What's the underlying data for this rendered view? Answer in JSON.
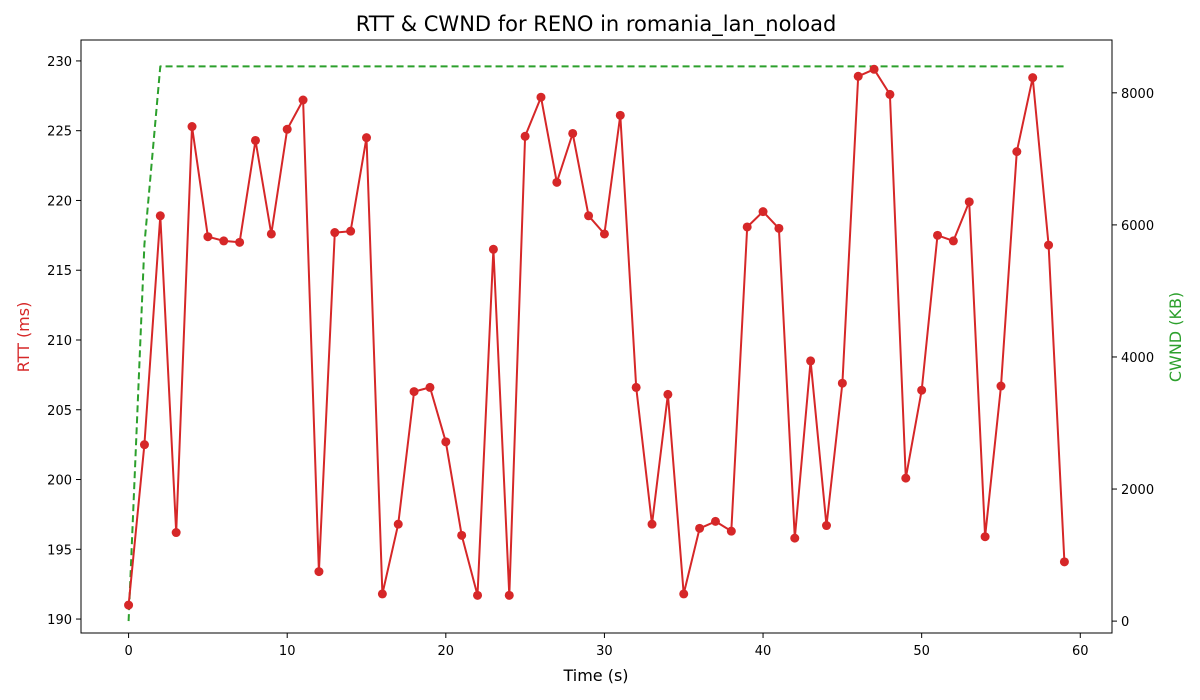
{
  "chart_data": {
    "type": "line",
    "title": "RTT & CWND for RENO in romania_lan_noload",
    "xlabel": "Time (s)",
    "ylabel_left": "RTT (ms)",
    "ylabel_right": "CWND (KB)",
    "xlim": [
      -3,
      62
    ],
    "ylim_left": [
      189,
      231.5
    ],
    "ylim_right": [
      -180,
      8800
    ],
    "xticks": [
      0,
      10,
      20,
      30,
      40,
      50,
      60
    ],
    "yticks_left": [
      190,
      195,
      200,
      205,
      210,
      215,
      220,
      225,
      230
    ],
    "yticks_right": [
      0,
      2000,
      4000,
      6000,
      8000
    ],
    "grid": false,
    "legend": "none",
    "series": [
      {
        "axis": "left",
        "color": "#d62728",
        "style": "solid-markers",
        "x": [
          0,
          1,
          2,
          3,
          4,
          5,
          6,
          7,
          8,
          9,
          10,
          11,
          12,
          13,
          14,
          15,
          16,
          17,
          18,
          19,
          20,
          21,
          22,
          23,
          24,
          25,
          26,
          27,
          28,
          29,
          30,
          31,
          32,
          33,
          34,
          35,
          36,
          37,
          38,
          39,
          40,
          41,
          42,
          43,
          44,
          45,
          46,
          47,
          48,
          49,
          50,
          51,
          52,
          53,
          54,
          55,
          56,
          57,
          58,
          59
        ],
        "values": [
          191.0,
          202.5,
          218.9,
          196.2,
          225.3,
          217.4,
          217.1,
          217.0,
          224.3,
          217.6,
          225.1,
          227.2,
          193.4,
          217.7,
          217.8,
          224.5,
          191.8,
          196.8,
          206.3,
          206.6,
          202.7,
          196.0,
          191.7,
          216.5,
          191.7,
          224.6,
          227.4,
          221.3,
          224.8,
          218.9,
          217.6,
          226.1,
          206.6,
          196.8,
          206.1,
          191.8,
          196.5,
          197.0,
          196.3,
          218.1,
          219.2,
          218.0,
          195.8,
          208.5,
          196.7,
          206.9,
          228.9,
          229.4,
          227.6,
          200.1,
          206.4,
          217.5,
          217.1,
          219.9,
          195.9,
          206.7,
          223.5,
          228.8,
          216.8,
          194.1
        ]
      },
      {
        "axis": "right",
        "color": "#2ca02c",
        "style": "dashed",
        "x": [
          0,
          1,
          2,
          59
        ],
        "values": [
          0,
          5700,
          8400,
          8400
        ]
      }
    ]
  }
}
